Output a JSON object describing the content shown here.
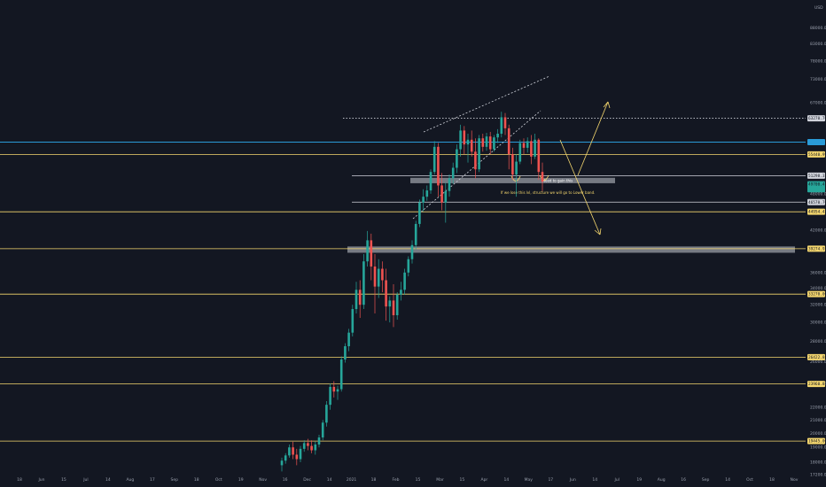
{
  "currency": "USD",
  "chart_data": {
    "type": "candlestick",
    "title": "",
    "xlabel": "",
    "ylabel": "",
    "ylim": [
      17200,
      95000
    ],
    "y_scale": "log",
    "grid": false,
    "colors": {
      "up": "#26a69a",
      "down": "#ef5350",
      "level": "#f5d76e",
      "cyan": "#2a9bd8",
      "zone": "#c8ccd4",
      "background": "#131722"
    },
    "x_ticks": [
      "18",
      "Jun",
      "15",
      "Jul",
      "14",
      "Aug",
      "17",
      "Sep",
      "18",
      "Oct",
      "19",
      "Nov",
      "16",
      "Dec",
      "14",
      "2021",
      "18",
      "Feb",
      "15",
      "Mar",
      "15",
      "Apr",
      "14",
      "May",
      "17",
      "Jun",
      "14",
      "Jul",
      "19",
      "Aug",
      "16",
      "Sep",
      "14",
      "Oct",
      "18",
      "Nov"
    ],
    "y_ticks": [
      "88000.00",
      "83000.00",
      "78000.00",
      "73000.00",
      "67000.00",
      "48000.00",
      "42000.00",
      "36000.00",
      "34000.00",
      "32000.00",
      "30000.00",
      "28000.00",
      "26000.00",
      "24000.00",
      "22000.00",
      "21000.00",
      "20000.00",
      "19000.00",
      "18000.00",
      "17200.00"
    ],
    "price_levels": [
      {
        "value": 63270,
        "label": "63270.70",
        "style": "white-dotted",
        "badge_color": "#d1d4dc"
      },
      {
        "value": 58000,
        "label": "",
        "style": "cyan",
        "badge_color": "#2a9bd8"
      },
      {
        "value": 55440,
        "label": "55440.99",
        "style": "yellow",
        "badge_color": "#f5d76e"
      },
      {
        "value": 51298,
        "label": "51298.32",
        "style": "white",
        "badge_color": "#d1d4dc"
      },
      {
        "value": 49700,
        "label": "49700.41",
        "style": "green-badge",
        "badge_color": "#26a69a"
      },
      {
        "value": 48800,
        "label": "",
        "style": "green-badge",
        "badge_color": "#26a69a"
      },
      {
        "value": 46570,
        "label": "46570.70",
        "style": "white",
        "badge_color": "#d1d4dc"
      },
      {
        "value": 44954,
        "label": "44954.43",
        "style": "yellow",
        "badge_color": "#f5d76e"
      },
      {
        "value": 39274,
        "label": "39274.92",
        "style": "yellow",
        "badge_color": "#f5d76e"
      },
      {
        "value": 33270,
        "label": "33270.00",
        "style": "yellow",
        "badge_color": "#f5d76e"
      },
      {
        "value": 26422,
        "label": "26422.88",
        "style": "yellow",
        "badge_color": "#f5d76e"
      },
      {
        "value": 23960,
        "label": "23960.88",
        "style": "yellow",
        "badge_color": "#f5d76e"
      },
      {
        "value": 19445,
        "label": "19445.00",
        "style": "yellow",
        "badge_color": "#f5d76e"
      }
    ],
    "zones": [
      {
        "from": 38700,
        "to": 39600,
        "label": ""
      },
      {
        "from": 49900,
        "to": 50900,
        "label": "Need to gain this"
      }
    ],
    "annotations": [
      {
        "text": "If we lose this lvl, structure we will go to Lower band."
      }
    ],
    "candles": [
      {
        "o": 17800,
        "h": 18300,
        "l": 17400,
        "c": 18100
      },
      {
        "o": 18100,
        "h": 18600,
        "l": 17900,
        "c": 18450
      },
      {
        "o": 18450,
        "h": 19200,
        "l": 18300,
        "c": 19000
      },
      {
        "o": 19000,
        "h": 19400,
        "l": 18200,
        "c": 18500
      },
      {
        "o": 18500,
        "h": 18900,
        "l": 17800,
        "c": 18200
      },
      {
        "o": 18200,
        "h": 19100,
        "l": 18000,
        "c": 18900
      },
      {
        "o": 18900,
        "h": 19500,
        "l": 18700,
        "c": 19300
      },
      {
        "o": 19300,
        "h": 19600,
        "l": 18800,
        "c": 19100
      },
      {
        "o": 19100,
        "h": 19500,
        "l": 18600,
        "c": 18800
      },
      {
        "o": 18800,
        "h": 19400,
        "l": 18500,
        "c": 19200
      },
      {
        "o": 19200,
        "h": 19900,
        "l": 19000,
        "c": 19700
      },
      {
        "o": 19700,
        "h": 21000,
        "l": 19500,
        "c": 20800
      },
      {
        "o": 20800,
        "h": 22500,
        "l": 20500,
        "c": 22200
      },
      {
        "o": 22200,
        "h": 24000,
        "l": 21800,
        "c": 23700
      },
      {
        "o": 23700,
        "h": 24200,
        "l": 22800,
        "c": 23300
      },
      {
        "o": 23300,
        "h": 23800,
        "l": 22600,
        "c": 23500
      },
      {
        "o": 23500,
        "h": 26500,
        "l": 23300,
        "c": 26200
      },
      {
        "o": 26200,
        "h": 27800,
        "l": 25900,
        "c": 27500
      },
      {
        "o": 27500,
        "h": 29300,
        "l": 27000,
        "c": 28900
      },
      {
        "o": 28900,
        "h": 32000,
        "l": 28500,
        "c": 31500
      },
      {
        "o": 31500,
        "h": 34800,
        "l": 31000,
        "c": 33800
      },
      {
        "o": 33800,
        "h": 35000,
        "l": 30500,
        "c": 32000
      },
      {
        "o": 32000,
        "h": 38500,
        "l": 31500,
        "c": 37500
      },
      {
        "o": 37500,
        "h": 41900,
        "l": 36800,
        "c": 40500
      },
      {
        "o": 40500,
        "h": 41500,
        "l": 35000,
        "c": 36800
      },
      {
        "o": 36800,
        "h": 38500,
        "l": 31000,
        "c": 34200
      },
      {
        "o": 34200,
        "h": 37800,
        "l": 32800,
        "c": 36500
      },
      {
        "o": 36500,
        "h": 37500,
        "l": 33500,
        "c": 35000
      },
      {
        "o": 35000,
        "h": 36500,
        "l": 30200,
        "c": 31800
      },
      {
        "o": 31800,
        "h": 33000,
        "l": 30000,
        "c": 32500
      },
      {
        "o": 32500,
        "h": 34500,
        "l": 29500,
        "c": 30800
      },
      {
        "o": 30800,
        "h": 33500,
        "l": 30300,
        "c": 33200
      },
      {
        "o": 33200,
        "h": 34800,
        "l": 32500,
        "c": 33800
      },
      {
        "o": 33800,
        "h": 36500,
        "l": 33200,
        "c": 36000
      },
      {
        "o": 36000,
        "h": 38200,
        "l": 35500,
        "c": 37800
      },
      {
        "o": 37800,
        "h": 40500,
        "l": 37200,
        "c": 39800
      },
      {
        "o": 39800,
        "h": 43500,
        "l": 39200,
        "c": 43000
      },
      {
        "o": 43000,
        "h": 47000,
        "l": 42500,
        "c": 46500
      },
      {
        "o": 46500,
        "h": 48800,
        "l": 45000,
        "c": 47500
      },
      {
        "o": 47500,
        "h": 49500,
        "l": 46800,
        "c": 48600
      },
      {
        "o": 48600,
        "h": 52500,
        "l": 48000,
        "c": 52000
      },
      {
        "o": 52000,
        "h": 58200,
        "l": 51500,
        "c": 57000
      },
      {
        "o": 57000,
        "h": 57800,
        "l": 47500,
        "c": 49500
      },
      {
        "o": 49500,
        "h": 51800,
        "l": 45200,
        "c": 46500
      },
      {
        "o": 46500,
        "h": 50000,
        "l": 43200,
        "c": 48500
      },
      {
        "o": 48500,
        "h": 51500,
        "l": 47500,
        "c": 50800
      },
      {
        "o": 50800,
        "h": 53800,
        "l": 49800,
        "c": 52800
      },
      {
        "o": 52800,
        "h": 57500,
        "l": 51800,
        "c": 56500
      },
      {
        "o": 56500,
        "h": 61800,
        "l": 55000,
        "c": 60500
      },
      {
        "o": 60500,
        "h": 61500,
        "l": 55500,
        "c": 57500
      },
      {
        "o": 57500,
        "h": 59800,
        "l": 53800,
        "c": 58500
      },
      {
        "o": 58500,
        "h": 60500,
        "l": 55000,
        "c": 56000
      },
      {
        "o": 56000,
        "h": 58800,
        "l": 50800,
        "c": 52500
      },
      {
        "o": 52500,
        "h": 59500,
        "l": 52000,
        "c": 58800
      },
      {
        "o": 58800,
        "h": 59800,
        "l": 56000,
        "c": 57000
      },
      {
        "o": 57000,
        "h": 60000,
        "l": 56200,
        "c": 59200
      },
      {
        "o": 59200,
        "h": 60200,
        "l": 55500,
        "c": 56500
      },
      {
        "o": 56500,
        "h": 59500,
        "l": 56000,
        "c": 59000
      },
      {
        "o": 59000,
        "h": 60800,
        "l": 57800,
        "c": 59800
      },
      {
        "o": 59800,
        "h": 64800,
        "l": 59000,
        "c": 63500
      },
      {
        "o": 63500,
        "h": 64500,
        "l": 59500,
        "c": 61000
      },
      {
        "o": 61000,
        "h": 61800,
        "l": 52500,
        "c": 55500
      },
      {
        "o": 55500,
        "h": 56800,
        "l": 50500,
        "c": 51500
      },
      {
        "o": 51500,
        "h": 55500,
        "l": 47500,
        "c": 54000
      },
      {
        "o": 54000,
        "h": 58500,
        "l": 53500,
        "c": 57800
      },
      {
        "o": 57800,
        "h": 58800,
        "l": 55500,
        "c": 56800
      },
      {
        "o": 56800,
        "h": 59000,
        "l": 55800,
        "c": 58200
      },
      {
        "o": 58200,
        "h": 59500,
        "l": 53500,
        "c": 55000
      },
      {
        "o": 55000,
        "h": 59800,
        "l": 54500,
        "c": 58500
      },
      {
        "o": 58500,
        "h": 58800,
        "l": 50500,
        "c": 52000
      },
      {
        "o": 52000,
        "h": 53800,
        "l": 48500,
        "c": 50200
      }
    ]
  }
}
